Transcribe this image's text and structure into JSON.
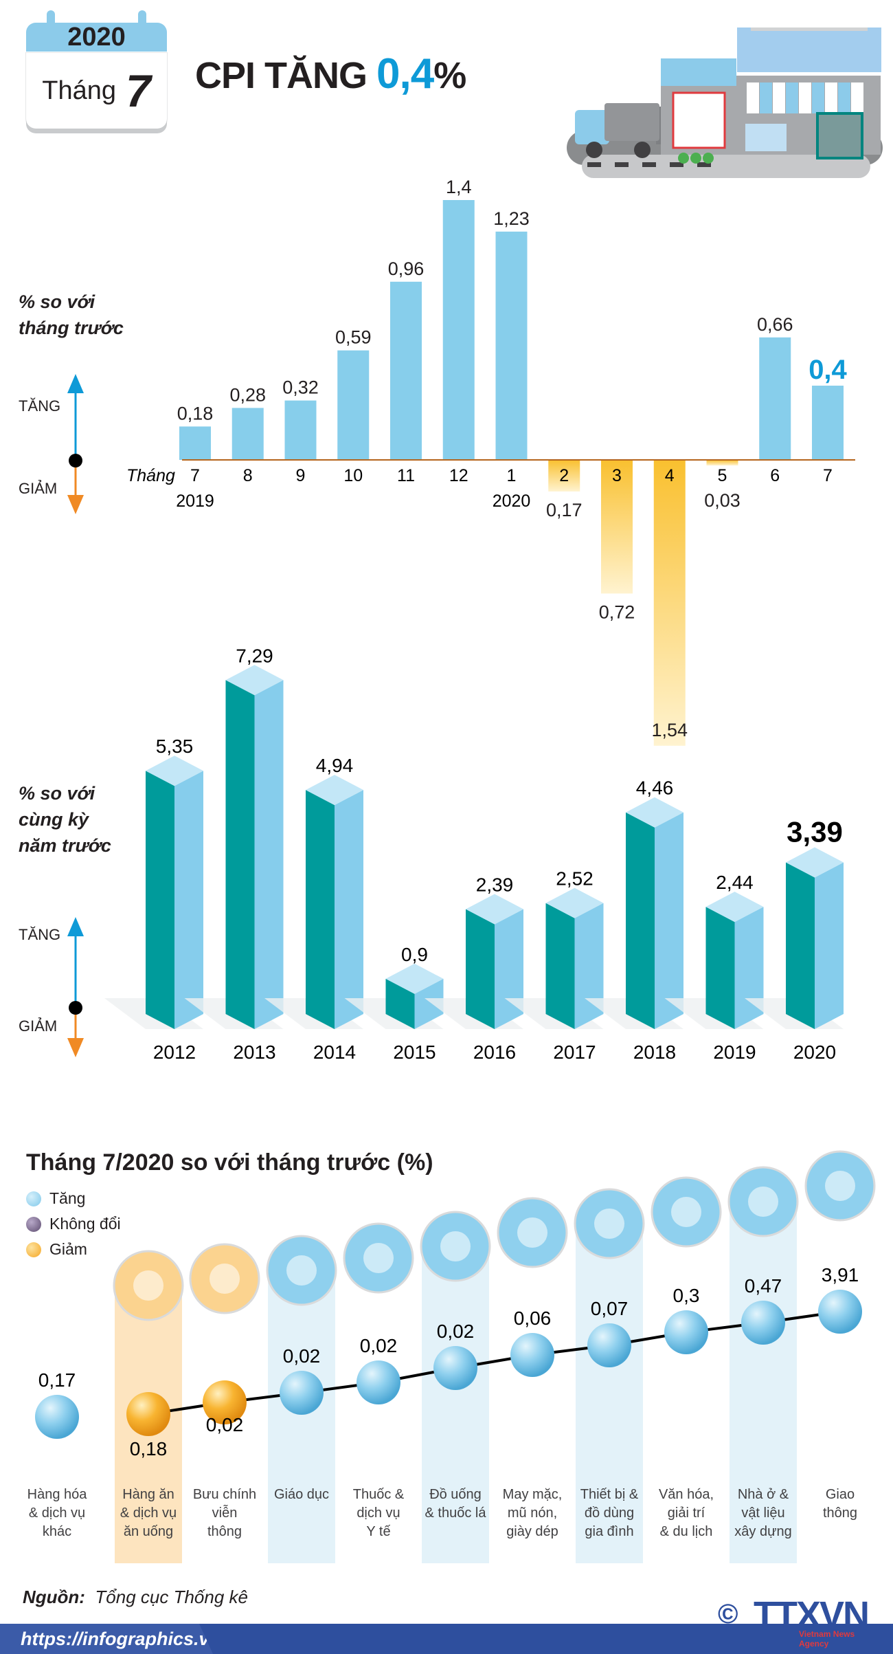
{
  "header": {
    "year": "2020",
    "month_label": "Tháng",
    "month_number": "7",
    "title_prefix": "CPI TĂNG",
    "title_value": "0,4",
    "title_suffix": "%"
  },
  "colors": {
    "bar_up": "#87ceeb",
    "bar_down": "#f9c02f",
    "teal": "#009b9b",
    "accent": "#0e9ad7",
    "orange": "#f39c1f",
    "footer": "#2e4f9e"
  },
  "chart_data": [
    {
      "type": "bar",
      "title": "% so với tháng trước",
      "ylabel_lines": [
        "% so với",
        "tháng trước"
      ],
      "up_label": "TĂNG",
      "down_label": "GIẢM",
      "xlabel": "Tháng",
      "categories": [
        "7",
        "8",
        "9",
        "10",
        "11",
        "12",
        "1",
        "2",
        "3",
        "4",
        "5",
        "6",
        "7"
      ],
      "year_labels": {
        "0": "2019",
        "6": "2020"
      },
      "values": [
        0.18,
        0.28,
        0.32,
        0.59,
        0.96,
        1.4,
        1.23,
        -0.17,
        -0.72,
        -1.54,
        -0.03,
        0.66,
        0.4
      ],
      "value_labels": [
        "0,18",
        "0,28",
        "0,32",
        "0,59",
        "0,96",
        "1,4",
        "1,23",
        "0,17",
        "0,72",
        "1,54",
        "0,03",
        "0,66",
        "0,4"
      ]
    },
    {
      "type": "bar",
      "title": "% so với cùng kỳ năm trước",
      "ylabel_lines": [
        "% so với",
        "cùng kỳ",
        "năm trước"
      ],
      "up_label": "TĂNG",
      "down_label": "GIẢM",
      "categories": [
        "2012",
        "2013",
        "2014",
        "2015",
        "2016",
        "2017",
        "2018",
        "2019",
        "2020"
      ],
      "values": [
        5.35,
        7.29,
        4.94,
        0.9,
        2.39,
        2.52,
        4.46,
        2.44,
        3.39
      ],
      "value_labels": [
        "5,35",
        "7,29",
        "4,94",
        "0,9",
        "2,39",
        "2,52",
        "4,46",
        "2,44",
        "3,39"
      ]
    },
    {
      "type": "scatter",
      "title": "Tháng 7/2020 so với tháng trước (%)",
      "legend": [
        {
          "label": "Tăng",
          "color": "#7fc8ea"
        },
        {
          "label": "Không đổi",
          "color": "#6b5b7b"
        },
        {
          "label": "Giảm",
          "color": "#f5a623"
        }
      ],
      "items": [
        {
          "label": [
            "Hàng hóa",
            "& dịch vụ",
            "khác"
          ],
          "value": 0.17,
          "value_label": "0,17",
          "status": "up",
          "icon": "none",
          "band": ""
        },
        {
          "label": [
            "Hàng ăn",
            "& dịch vụ",
            "ăn uống"
          ],
          "value": -0.18,
          "value_label": "0,18",
          "status": "down",
          "icon": "food-icon",
          "band": "orange"
        },
        {
          "label": [
            "Bưu chính",
            "viễn",
            "thông"
          ],
          "value": -0.02,
          "value_label": "0,02",
          "status": "down",
          "icon": "antenna-icon",
          "band": ""
        },
        {
          "label": [
            "Giáo dục"
          ],
          "value": 0.02,
          "value_label": "0,02",
          "status": "up",
          "icon": "graduation-cap-icon",
          "band": "blue"
        },
        {
          "label": [
            "Thuốc &",
            "dịch vụ",
            "Y tế"
          ],
          "value": 0.02,
          "value_label": "0,02",
          "status": "up",
          "icon": "pills-icon",
          "band": ""
        },
        {
          "label": [
            "Đồ uống",
            "& thuốc lá"
          ],
          "value": 0.02,
          "value_label": "0,02",
          "status": "up",
          "icon": "drink-cigarette-icon",
          "band": "blue"
        },
        {
          "label": [
            "May mặc,",
            "mũ nón,",
            "giày dép"
          ],
          "value": 0.06,
          "value_label": "0,06",
          "status": "up",
          "icon": "clothes-shoes-icon",
          "band": ""
        },
        {
          "label": [
            "Thiết bị &",
            "đồ dùng",
            "gia đình"
          ],
          "value": 0.07,
          "value_label": "0,07",
          "status": "up",
          "icon": "washing-machine-icon",
          "band": "blue"
        },
        {
          "label": [
            "Văn hóa,",
            "giải trí",
            "& du lịch"
          ],
          "value": 0.3,
          "value_label": "0,3",
          "status": "up",
          "icon": "clapperboard-icon",
          "band": ""
        },
        {
          "label": [
            "Nhà ở &",
            "vật liệu",
            "xây dựng"
          ],
          "value": 0.47,
          "value_label": "0,47",
          "status": "up",
          "icon": "house-icon",
          "band": "blue"
        },
        {
          "label": [
            "Giao",
            "thông"
          ],
          "value": 3.91,
          "value_label": "3,91",
          "status": "up",
          "icon": "traffic-light-icon",
          "band": ""
        }
      ]
    }
  ],
  "footer": {
    "source_label": "Nguồn:",
    "source_value": "Tổng cục Thống kê",
    "url": "https://infographics.vn",
    "logo_text": "TTXVN",
    "logo_sub": "Vietnam News Agency",
    "copyright": "©"
  }
}
